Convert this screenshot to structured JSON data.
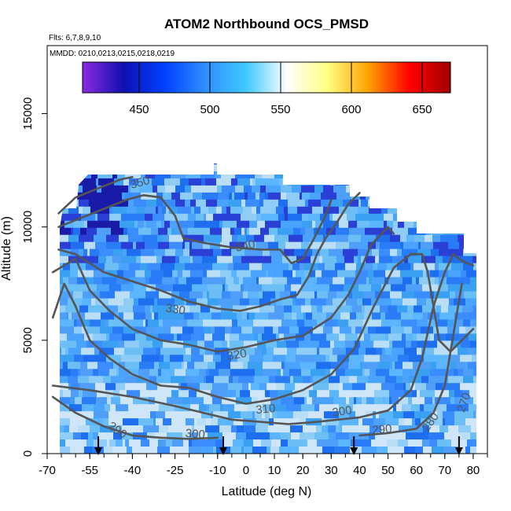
{
  "chart_data": {
    "type": "heatmap",
    "title": "ATOM2 Northbound OCS_PMSD",
    "subtitle_flights": "Flts: 6,7,8,9,10",
    "subtitle_dates": "MMDD: 0210,0213,0215,0218,0219",
    "xlabel": "Latitude (deg N)",
    "ylabel": "Altitude (m)",
    "xlim": [
      -70,
      85
    ],
    "ylim": [
      0,
      18000
    ],
    "x_ticks": [
      -70,
      -55,
      -40,
      -25,
      -10,
      0,
      10,
      20,
      30,
      40,
      50,
      60,
      70,
      80
    ],
    "x_tick_labels": [
      "-70",
      "-55",
      "-40",
      "-25",
      "-10",
      "0",
      "10",
      "20",
      "30",
      "40",
      "50",
      "60",
      "70",
      "80"
    ],
    "y_ticks": [
      0,
      5000,
      10000,
      15000
    ],
    "y_tick_labels": [
      "0",
      "5000",
      "10000",
      "15000"
    ],
    "colorbar": {
      "range": [
        410,
        670
      ],
      "ticks": [
        450,
        500,
        550,
        600,
        650
      ],
      "tick_labels": [
        "450",
        "500",
        "550",
        "600",
        "650"
      ],
      "colors": [
        "#8a2be2",
        "#1010b0",
        "#0040ff",
        "#2f8fff",
        "#40c8ff",
        "#ffffff",
        "#ffff80",
        "#ffa000",
        "#ff0000",
        "#a00000"
      ]
    },
    "theta_contours": [
      {
        "level": 290,
        "label": "290",
        "points": [
          [
            -68,
            2500
          ],
          [
            -60,
            1800
          ],
          [
            -50,
            1200
          ],
          [
            -40,
            800
          ],
          [
            -30,
            700
          ],
          [
            -20,
            650
          ],
          [
            -10,
            700
          ]
        ]
      },
      {
        "level": 290,
        "label": "290",
        "points": [
          [
            40,
            800
          ],
          [
            50,
            900
          ],
          [
            60,
            1100
          ],
          [
            66,
            1800
          ],
          [
            70,
            3000
          ],
          [
            74,
            6000
          ],
          [
            76,
            7500
          ]
        ]
      },
      {
        "level": 300,
        "label": "300",
        "points": [
          [
            -68,
            3000
          ],
          [
            -55,
            2800
          ],
          [
            -40,
            2500
          ],
          [
            -25,
            2100
          ],
          [
            -15,
            1800
          ],
          [
            -5,
            1500
          ],
          [
            5,
            1400
          ],
          [
            15,
            1300
          ],
          [
            25,
            1400
          ],
          [
            40,
            1600
          ],
          [
            50,
            1900
          ],
          [
            58,
            2800
          ],
          [
            62,
            4200
          ],
          [
            66,
            6500
          ],
          [
            70,
            8000
          ],
          [
            73,
            8800
          ],
          [
            76,
            8500
          ],
          [
            80,
            8300
          ]
        ]
      },
      {
        "level": 310,
        "label": "310",
        "points": [
          [
            -68,
            6000
          ],
          [
            -64,
            7500
          ],
          [
            -60,
            6500
          ],
          [
            -55,
            5000
          ],
          [
            -48,
            4200
          ],
          [
            -40,
            3500
          ],
          [
            -30,
            3000
          ],
          [
            -20,
            2900
          ],
          [
            -10,
            2500
          ],
          [
            0,
            2200
          ],
          [
            10,
            2400
          ],
          [
            20,
            2800
          ],
          [
            30,
            3500
          ],
          [
            38,
            4600
          ],
          [
            45,
            6500
          ],
          [
            52,
            8200
          ],
          [
            58,
            8800
          ],
          [
            62,
            8800
          ],
          [
            64,
            8000
          ],
          [
            68,
            5000
          ],
          [
            72,
            4500
          ],
          [
            76,
            5000
          ],
          [
            80,
            5500
          ]
        ]
      },
      {
        "level": 320,
        "label": "320",
        "points": [
          [
            -68,
            8000
          ],
          [
            -60,
            8600
          ],
          [
            -55,
            7200
          ],
          [
            -48,
            6300
          ],
          [
            -40,
            5500
          ],
          [
            -30,
            5000
          ],
          [
            -20,
            4800
          ],
          [
            -10,
            4500
          ],
          [
            0,
            4700
          ],
          [
            10,
            5000
          ],
          [
            20,
            5200
          ],
          [
            30,
            6000
          ],
          [
            36,
            7000
          ],
          [
            40,
            8000
          ],
          [
            44,
            9200
          ],
          [
            50,
            10000
          ],
          [
            52,
            9700
          ]
        ]
      },
      {
        "level": 330,
        "label": "330",
        "points": [
          [
            -66,
            9000
          ],
          [
            -60,
            8800
          ],
          [
            -50,
            8000
          ],
          [
            -40,
            7600
          ],
          [
            -30,
            7200
          ],
          [
            -20,
            6700
          ],
          [
            -10,
            6400
          ],
          [
            -2,
            6300
          ],
          [
            5,
            6500
          ],
          [
            12,
            6800
          ],
          [
            18,
            7000
          ],
          [
            22,
            7800
          ],
          [
            25,
            8800
          ],
          [
            28,
            9500
          ],
          [
            32,
            10200
          ],
          [
            36,
            11000
          ],
          [
            40,
            11500
          ]
        ]
      },
      {
        "level": 340,
        "label": "340",
        "points": [
          [
            -66,
            10000
          ],
          [
            -58,
            10400
          ],
          [
            -50,
            10800
          ],
          [
            -42,
            11200
          ],
          [
            -36,
            11400
          ],
          [
            -30,
            11300
          ],
          [
            -25,
            10500
          ],
          [
            -22,
            9500
          ],
          [
            -15,
            9300
          ],
          [
            -5,
            9100
          ],
          [
            5,
            9000
          ],
          [
            12,
            9000
          ],
          [
            16,
            8400
          ],
          [
            20,
            8600
          ],
          [
            24,
            9500
          ],
          [
            28,
            10500
          ],
          [
            30,
            11200
          ]
        ]
      },
      {
        "level": 350,
        "label": "350",
        "points": [
          [
            -66,
            10600
          ],
          [
            -60,
            11300
          ],
          [
            -52,
            11700
          ],
          [
            -44,
            12100
          ],
          [
            -40,
            12200
          ]
        ]
      }
    ],
    "contour_labels": [
      "290",
      "300",
      "310",
      "320",
      "330",
      "340",
      "350",
      "280",
      "270"
    ],
    "flight_markers_latitude": [
      -52,
      -8,
      38,
      75
    ]
  }
}
